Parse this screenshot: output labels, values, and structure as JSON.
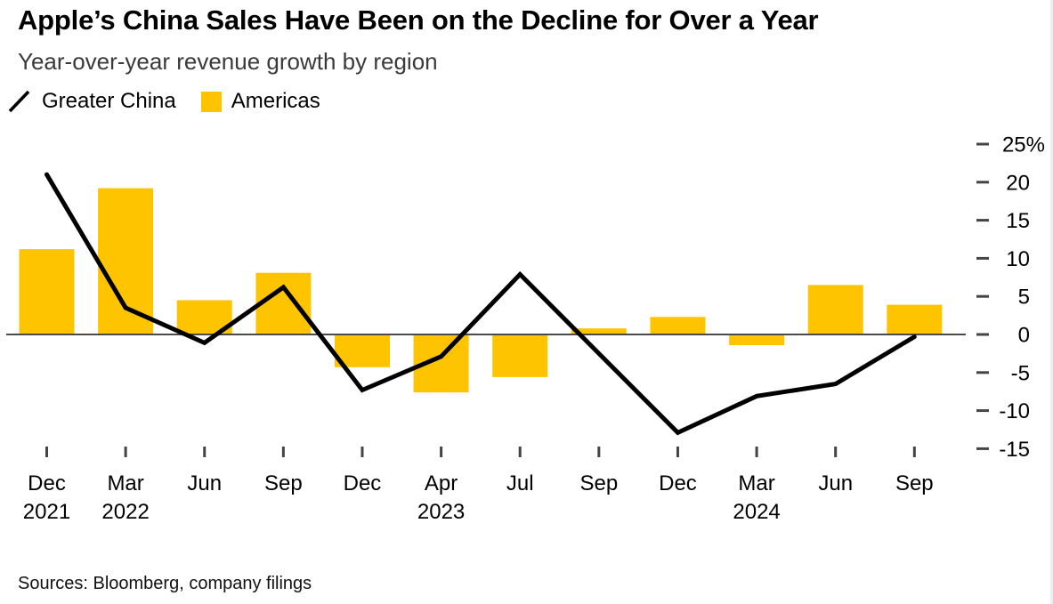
{
  "header": {
    "title": "Apple’s China Sales Have Been on the Decline for Over a Year",
    "subtitle": "Year-over-year revenue growth by region"
  },
  "legend": {
    "items": [
      {
        "label": "Greater China",
        "type": "line",
        "color": "#000000"
      },
      {
        "label": "Americas",
        "type": "bar",
        "color": "#FFC400"
      }
    ]
  },
  "chart_data": {
    "type": "combo (line + bar)",
    "unit": "percent YoY revenue growth",
    "categories": [
      "Dec 2021",
      "Mar 2022",
      "Jun 2022",
      "Sep 2022",
      "Dec 2022",
      "Apr 2023",
      "Jul 2023",
      "Sep 2023",
      "Dec 2023",
      "Mar 2024",
      "Jun 2024",
      "Sep 2024"
    ],
    "x_ticks": [
      {
        "month": "Dec",
        "year": "2021"
      },
      {
        "month": "Mar",
        "year": "2022"
      },
      {
        "month": "Jun"
      },
      {
        "month": "Sep"
      },
      {
        "month": "Dec"
      },
      {
        "month": "Apr",
        "year": "2023"
      },
      {
        "month": "Jul"
      },
      {
        "month": "Sep"
      },
      {
        "month": "Dec"
      },
      {
        "month": "Mar",
        "year": "2024"
      },
      {
        "month": "Jun"
      },
      {
        "month": "Sep"
      }
    ],
    "series": [
      {
        "name": "Greater China",
        "type": "line",
        "color": "#000000",
        "values": [
          21,
          3.5,
          -1.1,
          6.2,
          -7.3,
          -2.9,
          7.9,
          -2.5,
          -12.9,
          -8.1,
          -6.5,
          -0.3
        ]
      },
      {
        "name": "Americas",
        "type": "bar",
        "color": "#FFC400",
        "values": [
          11.2,
          19.2,
          4.5,
          8.1,
          -4.3,
          -7.6,
          -5.6,
          0.8,
          2.3,
          -1.4,
          6.5,
          3.9
        ]
      }
    ],
    "ylim": [
      -15,
      25
    ],
    "y_ticks": [
      {
        "value": 25,
        "label": "25%"
      },
      {
        "value": 20,
        "label": "20"
      },
      {
        "value": 15,
        "label": "15"
      },
      {
        "value": 10,
        "label": "10"
      },
      {
        "value": 5,
        "label": "5"
      },
      {
        "value": 0,
        "label": "0"
      },
      {
        "value": -5,
        "label": "-5"
      },
      {
        "value": -10,
        "label": "-10"
      },
      {
        "value": -15,
        "label": "-15"
      }
    ],
    "grid": "zero-line-only",
    "legend_position": "top-left",
    "y_axis_side": "right"
  },
  "footer": {
    "source": "Sources: Bloomberg, company filings"
  }
}
